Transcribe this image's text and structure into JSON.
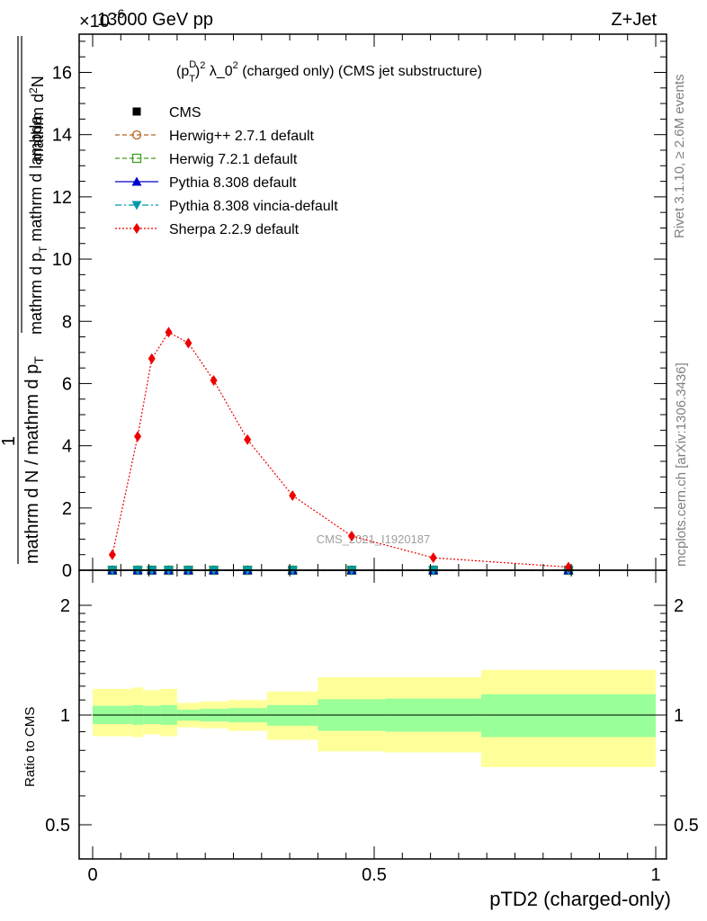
{
  "header": {
    "left": "13000 GeV pp",
    "right": "Z+Jet",
    "exponent": "×10",
    "exponent_power": "-6"
  },
  "side_labels": {
    "rivet": "Rivet 3.1.10, ≥ 2.6M events",
    "mcplots": "mcplots.cern.ch [arXiv:1306.3436]"
  },
  "watermark": "CMS_2021_I1920187",
  "colors": {
    "cms": "#000000",
    "herwigpp": "#b5651d",
    "herwig7": "#3f9f1f",
    "pythia": "#0000cc",
    "vincia": "#0099aa",
    "sherpa": "#ee0000",
    "band_inner": "#99ff99",
    "band_outer": "#ffff99"
  },
  "chart_data": [
    {
      "type": "line",
      "title_parts": [
        "(p",
        "D",
        "T",
        ")",
        "2",
        " λ_0",
        "2",
        " (charged only) (CMS jet substructure)"
      ],
      "ylabel_parts": {
        "numerator": "1",
        "denominator_outer": "mathrm d N / mathrm d p",
        "denominator_outer_sub": "T",
        "numerator_right": "mathrm d",
        "numerator_right_super": "2",
        "numerator_right_rest": "N",
        "denominator_right": "mathrm d p",
        "denominator_right_sub": "T",
        "denominator_right_rest": " mathrm d lambda"
      },
      "xlabel": "pTD2 (charged-only)",
      "x_range": [
        0,
        1
      ],
      "ylim": [
        0,
        17.3
      ],
      "y_scale_note": "×10^-6",
      "y_ticks": [
        "0",
        "2",
        "4",
        "6",
        "8",
        "10",
        "12",
        "14",
        "16"
      ],
      "series": [
        {
          "name": "CMS",
          "marker": "square",
          "x": [
            0.035,
            0.08,
            0.105,
            0.135,
            0.17,
            0.215,
            0.275,
            0.355,
            0.46,
            0.605,
            0.845
          ],
          "y": [
            0,
            0,
            0,
            0,
            0,
            0,
            0,
            0,
            0,
            0,
            0
          ]
        },
        {
          "name": "Herwig++ 2.7.1 default",
          "marker": "open-circle",
          "line": "dashed",
          "x": [
            0.035,
            0.08,
            0.105,
            0.135,
            0.17,
            0.215,
            0.275,
            0.355,
            0.46,
            0.605,
            0.845
          ],
          "y": [
            0,
            0,
            0,
            0,
            0,
            0,
            0,
            0,
            0,
            0,
            0
          ]
        },
        {
          "name": "Herwig 7.2.1 default",
          "marker": "open-square",
          "line": "dashed",
          "x": [
            0.035,
            0.08,
            0.105,
            0.135,
            0.17,
            0.215,
            0.275,
            0.355,
            0.46,
            0.605,
            0.845
          ],
          "y": [
            0,
            0,
            0,
            0,
            0,
            0,
            0,
            0,
            0,
            0,
            0
          ]
        },
        {
          "name": "Pythia 8.308 default",
          "marker": "triangle-up",
          "line": "solid",
          "x": [
            0.035,
            0.08,
            0.105,
            0.135,
            0.17,
            0.215,
            0.275,
            0.355,
            0.46,
            0.605,
            0.845
          ],
          "y": [
            0,
            0,
            0,
            0,
            0,
            0,
            0,
            0,
            0,
            0,
            0
          ]
        },
        {
          "name": "Pythia 8.308 vincia-default",
          "marker": "triangle-down",
          "line": "dashdot",
          "x": [
            0.035,
            0.08,
            0.105,
            0.135,
            0.17,
            0.215,
            0.275,
            0.355,
            0.46,
            0.605,
            0.845
          ],
          "y": [
            0,
            0,
            0,
            0,
            0,
            0,
            0,
            0,
            0,
            0,
            0
          ]
        },
        {
          "name": "Sherpa 2.2.9 default",
          "marker": "diamond",
          "line": "dotted",
          "x": [
            0.035,
            0.08,
            0.105,
            0.135,
            0.17,
            0.215,
            0.275,
            0.355,
            0.46,
            0.605,
            0.845
          ],
          "y": [
            0.5,
            4.3,
            6.8,
            7.65,
            7.3,
            6.1,
            4.2,
            2.4,
            1.1,
            0.4,
            0.1
          ]
        }
      ]
    },
    {
      "type": "area",
      "ylabel": "Ratio to CMS",
      "x_range": [
        0,
        1
      ],
      "ylim": [
        0.39,
        2.3
      ],
      "y_ticks": [
        "0.5",
        "1",
        "2"
      ],
      "x_ticks": [
        "0",
        "0.5",
        "1"
      ],
      "reference": 1,
      "bins": [
        {
          "lo": 0.0,
          "hi": 0.07,
          "inner": [
            0.945,
            1.06
          ],
          "outer": [
            0.875,
            1.18
          ]
        },
        {
          "lo": 0.07,
          "hi": 0.09,
          "inner": [
            0.94,
            1.065
          ],
          "outer": [
            0.87,
            1.19
          ]
        },
        {
          "lo": 0.09,
          "hi": 0.12,
          "inner": [
            0.945,
            1.06
          ],
          "outer": [
            0.885,
            1.17
          ]
        },
        {
          "lo": 0.12,
          "hi": 0.15,
          "inner": [
            0.94,
            1.065
          ],
          "outer": [
            0.875,
            1.18
          ]
        },
        {
          "lo": 0.15,
          "hi": 0.19,
          "inner": [
            0.965,
            1.035
          ],
          "outer": [
            0.925,
            1.08
          ]
        },
        {
          "lo": 0.19,
          "hi": 0.24,
          "inner": [
            0.96,
            1.04
          ],
          "outer": [
            0.92,
            1.09
          ]
        },
        {
          "lo": 0.24,
          "hi": 0.31,
          "inner": [
            0.955,
            1.045
          ],
          "outer": [
            0.905,
            1.1
          ]
        },
        {
          "lo": 0.31,
          "hi": 0.4,
          "inner": [
            0.935,
            1.065
          ],
          "outer": [
            0.855,
            1.16
          ]
        },
        {
          "lo": 0.4,
          "hi": 0.52,
          "inner": [
            0.905,
            1.105
          ],
          "outer": [
            0.795,
            1.27
          ]
        },
        {
          "lo": 0.52,
          "hi": 0.69,
          "inner": [
            0.9,
            1.11
          ],
          "outer": [
            0.79,
            1.27
          ]
        },
        {
          "lo": 0.69,
          "hi": 1.0,
          "inner": [
            0.87,
            1.14
          ],
          "outer": [
            0.72,
            1.33
          ]
        }
      ]
    }
  ]
}
